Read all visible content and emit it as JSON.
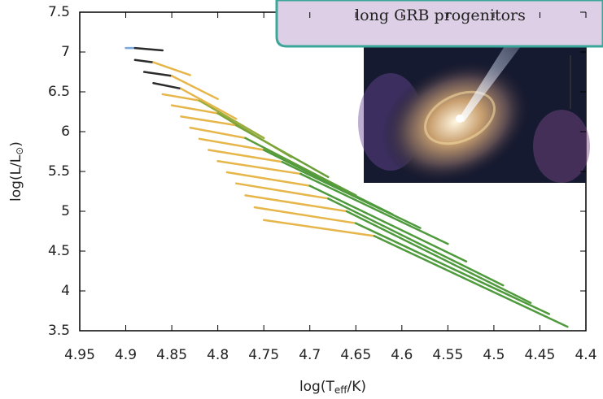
{
  "chart_data": {
    "type": "line",
    "annotation": "long GRB progenitors",
    "x_label": [
      "log(T",
      "eff",
      "/K)"
    ],
    "y_label": [
      "log(L/L",
      "⊙",
      ")"
    ],
    "xlim": [
      4.95,
      4.4
    ],
    "xticks": [
      4.95,
      4.9,
      4.85,
      4.8,
      4.75,
      4.7,
      4.65,
      4.6,
      4.55,
      4.5,
      4.45,
      4.4
    ],
    "ylim": [
      3.5,
      7.5
    ],
    "yticks": [
      3.5,
      4,
      4.5,
      5,
      5.5,
      6,
      6.5,
      7,
      7.5
    ],
    "grid": false,
    "series": [
      {
        "x": [
          4.75,
          4.63,
          4.42
        ],
        "y": [
          4.89,
          4.69,
          3.55
        ],
        "colors": [
          "#e6b64a",
          "#4f9a3c"
        ]
      },
      {
        "x": [
          4.76,
          4.65,
          4.44
        ],
        "y": [
          5.05,
          4.85,
          3.71
        ],
        "colors": [
          "#e6b64a",
          "#4f9a3c"
        ]
      },
      {
        "x": [
          4.77,
          4.66,
          4.46
        ],
        "y": [
          5.2,
          5.0,
          3.85
        ],
        "colors": [
          "#e6b64a",
          "#4f9a3c"
        ]
      },
      {
        "x": [
          4.78,
          4.68,
          4.49
        ],
        "y": [
          5.35,
          5.16,
          4.07
        ],
        "colors": [
          "#e6b64a",
          "#4f9a3c"
        ]
      },
      {
        "x": [
          4.79,
          4.7,
          4.53
        ],
        "y": [
          5.49,
          5.32,
          4.37
        ],
        "colors": [
          "#e6b64a",
          "#4f9a3c"
        ]
      },
      {
        "x": [
          4.8,
          4.71,
          4.55
        ],
        "y": [
          5.63,
          5.47,
          4.59
        ],
        "colors": [
          "#e6b64a",
          "#4f9a3c"
        ]
      },
      {
        "x": [
          4.81,
          4.73,
          4.58
        ],
        "y": [
          5.77,
          5.62,
          4.79
        ],
        "colors": [
          "#e6b64a",
          "#4f9a3c"
        ]
      },
      {
        "x": [
          4.82,
          4.75,
          4.61
        ],
        "y": [
          5.91,
          5.77,
          4.96
        ],
        "colors": [
          "#e6b64a",
          "#4f9a3c"
        ]
      },
      {
        "x": [
          4.83,
          4.77,
          4.65
        ],
        "y": [
          6.05,
          5.92,
          5.2
        ],
        "colors": [
          "#e6b64a",
          "#5c9c3a"
        ]
      },
      {
        "x": [
          4.84,
          4.78,
          4.68
        ],
        "y": [
          6.19,
          6.08,
          5.43
        ],
        "colors": [
          "#e6b64a",
          "#6a9f38"
        ]
      },
      {
        "x": [
          4.85,
          4.8,
          4.72
        ],
        "y": [
          6.33,
          6.23,
          5.68
        ],
        "colors": [
          "#e6b64a",
          "#7ea437"
        ]
      },
      {
        "x": [
          4.86,
          4.82,
          4.75
        ],
        "y": [
          6.47,
          6.39,
          5.92
        ],
        "colors": [
          "#e6b64a",
          "#9aac3c"
        ]
      },
      {
        "x": [
          4.87,
          4.84,
          4.78
        ],
        "y": [
          6.61,
          6.54,
          6.16
        ],
        "colors": [
          "#2b2b2b",
          "#e6b64a"
        ]
      },
      {
        "x": [
          4.88,
          4.85,
          4.8
        ],
        "y": [
          6.75,
          6.7,
          6.41
        ],
        "colors": [
          "#2b2b2b",
          "#e6b64a"
        ]
      },
      {
        "x": [
          4.89,
          4.87,
          4.83
        ],
        "y": [
          6.9,
          6.87,
          6.71
        ],
        "colors": [
          "#2b2b2b",
          "#e6b64a"
        ]
      },
      {
        "x": [
          4.9,
          4.89,
          4.86
        ],
        "y": [
          7.05,
          7.05,
          7.02
        ],
        "colors": [
          "#7aa6dd",
          "#2b2b2b"
        ]
      }
    ]
  }
}
